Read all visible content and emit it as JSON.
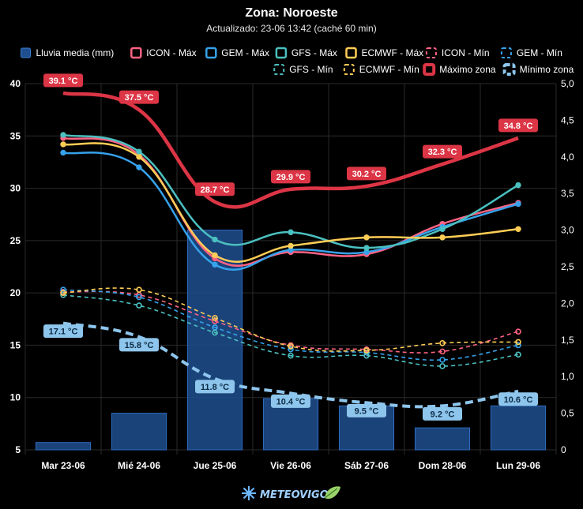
{
  "chart_data": {
    "type": "line",
    "title": "Zona: Noroeste",
    "subtitle": "Actualizado: 23-06 13:42 (caché 60 min)",
    "categories": [
      "Mar 23-06",
      "Mié 24-06",
      "Jue 25-06",
      "Vie 26-06",
      "Sáb 27-06",
      "Dom 28-06",
      "Lun 29-06"
    ],
    "y_left": {
      "ticks": [
        "5",
        "10",
        "15",
        "20",
        "25",
        "30",
        "35",
        "40"
      ],
      "ylim": [
        5,
        40
      ]
    },
    "y_right": {
      "ticks": [
        "0",
        "0,5",
        "1,0",
        "1,5",
        "2,0",
        "2,5",
        "3,0",
        "3,5",
        "4,0",
        "4,5",
        "5,0"
      ],
      "ylim": [
        0,
        5
      ]
    },
    "grid": true,
    "legend_position": "top",
    "rain": {
      "name": "Lluvia media (mm)",
      "color": "#1f4f8f",
      "values": [
        0.1,
        0.5,
        3.0,
        0.7,
        0.6,
        0.3,
        0.6
      ]
    },
    "series": [
      {
        "name": "ICON - Máx",
        "color": "#ff6384",
        "dashed": false,
        "values": [
          34.8,
          33.2,
          23.3,
          23.9,
          23.7,
          26.6,
          28.6
        ]
      },
      {
        "name": "GEM - Máx",
        "color": "#36a2eb",
        "dashed": false,
        "values": [
          33.4,
          32.0,
          22.7,
          24.1,
          23.9,
          26.3,
          28.5
        ]
      },
      {
        "name": "GFS - Máx",
        "color": "#4bc0c0",
        "dashed": false,
        "values": [
          35.1,
          33.5,
          25.1,
          25.8,
          24.3,
          26.1,
          30.3
        ]
      },
      {
        "name": "ECMWF - Máx",
        "color": "#ffcd56",
        "dashed": false,
        "values": [
          34.2,
          33.0,
          23.6,
          24.5,
          25.3,
          25.3,
          26.1
        ]
      },
      {
        "name": "ICON - Mín",
        "color": "#ff6384",
        "dashed": true,
        "values": [
          20.1,
          19.8,
          17.3,
          15.0,
          14.6,
          14.4,
          16.3
        ]
      },
      {
        "name": "GEM - Mín",
        "color": "#36a2eb",
        "dashed": true,
        "values": [
          20.3,
          19.6,
          16.7,
          14.6,
          14.3,
          13.6,
          15.0
        ]
      },
      {
        "name": "GFS - Mín",
        "color": "#4bc0c0",
        "dashed": true,
        "values": [
          19.8,
          18.8,
          16.2,
          14.0,
          14.0,
          13.0,
          14.1
        ]
      },
      {
        "name": "ECMWF - Mín",
        "color": "#ffcd56",
        "dashed": true,
        "values": [
          20.0,
          20.3,
          17.6,
          14.9,
          14.5,
          15.2,
          15.3
        ]
      }
    ],
    "zone_max": {
      "name": "Máximo zona",
      "color": "#dc3545",
      "values": [
        39.1,
        37.5,
        28.7,
        29.9,
        30.2,
        32.3,
        34.8
      ],
      "labels": [
        "39.1 °C",
        "37.5 °C",
        "28.7 °C",
        "29.9 °C",
        "30.2 °C",
        "32.3 °C",
        "34.8 °C"
      ]
    },
    "zone_min": {
      "name": "Mínimo zona",
      "color": "#8ec5ec",
      "values": [
        17.1,
        15.8,
        11.8,
        10.4,
        9.5,
        9.2,
        10.6
      ],
      "labels": [
        "17.1 °C",
        "15.8 °C",
        "11.8 °C",
        "10.4 °C",
        "9.5 °C",
        "9.2 °C",
        "10.6 °C"
      ]
    }
  },
  "footer": {
    "logo_text": "METEOVIGO"
  }
}
